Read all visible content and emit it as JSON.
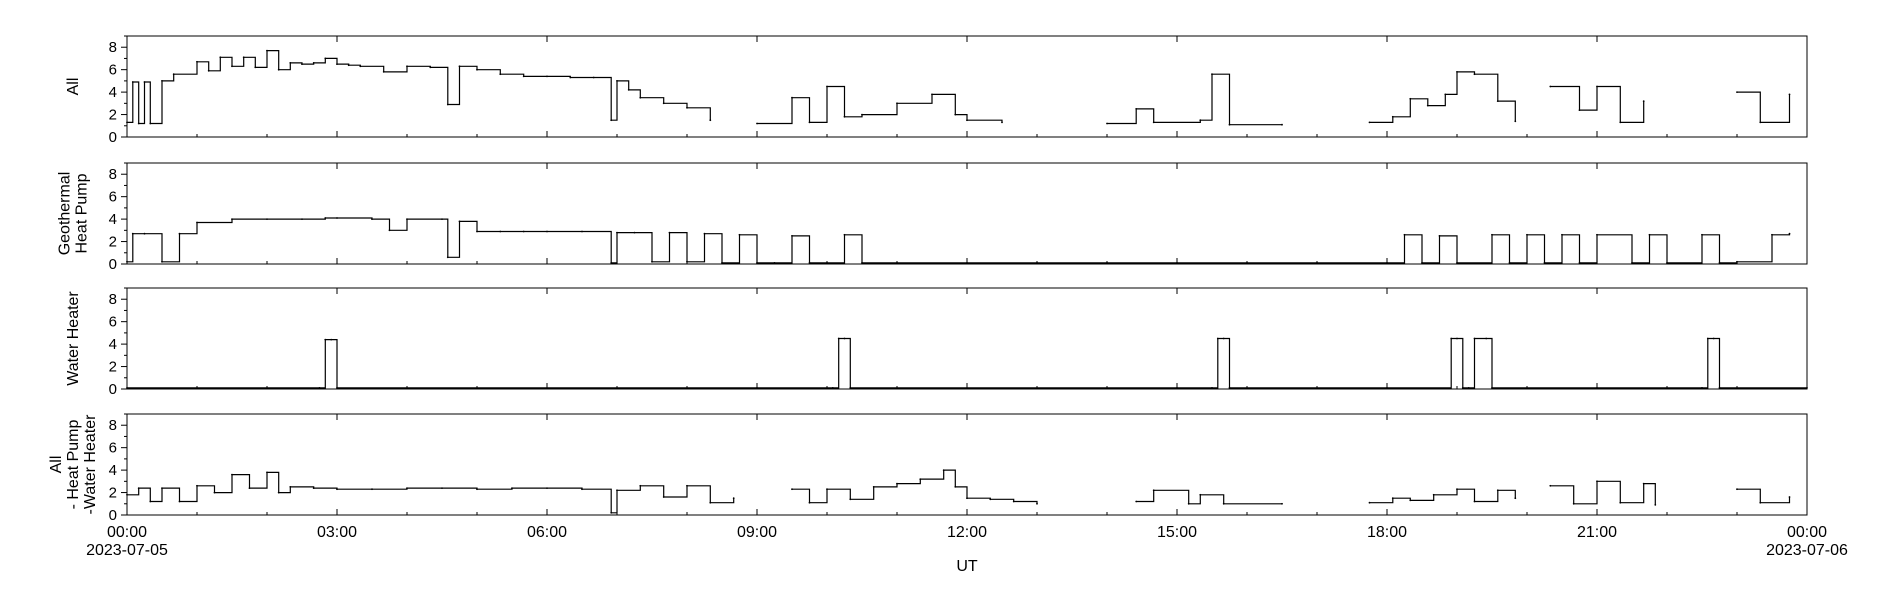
{
  "chart_data": {
    "type": "line",
    "layout": "4 vertically stacked panels sharing one time axis",
    "title": "",
    "grid": false,
    "xlabel": "UT",
    "x_range": [
      "2023-07-05T00:00",
      "2023-07-06T00:00"
    ],
    "x_tick_labels": [
      "00:00",
      "03:00",
      "06:00",
      "09:00",
      "12:00",
      "15:00",
      "18:00",
      "21:00",
      "00:00"
    ],
    "x_tick_hours": [
      0,
      3,
      6,
      9,
      12,
      15,
      18,
      21,
      24
    ],
    "x_date_labels": [
      {
        "hour": 0,
        "text": "2023-07-05"
      },
      {
        "hour": 24,
        "text": "2023-07-06"
      }
    ],
    "ylim": [
      0,
      9
    ],
    "y_ticks": [
      0,
      2,
      4,
      6,
      8
    ],
    "line_color": "#000000",
    "panels": [
      {
        "ylabel": [
          "All"
        ],
        "x": [
          "00:00",
          "00:05",
          "00:10",
          "00:15",
          "00:20",
          "00:30",
          "00:40",
          "01:00",
          "01:10",
          "01:20",
          "01:30",
          "01:40",
          "01:50",
          "02:00",
          "02:10",
          "02:20",
          "02:30",
          "02:40",
          "02:50",
          "03:00",
          "03:10",
          "03:20",
          "03:40",
          "04:00",
          "04:20",
          "04:35",
          "04:45",
          "05:00",
          "05:20",
          "05:40",
          "06:00",
          "06:20",
          "06:40",
          "06:55",
          "07:00",
          "07:10",
          "07:20",
          "07:40",
          "08:00",
          "08:20",
          "08:40",
          "09:00",
          "09:30",
          "09:45",
          "10:00",
          "10:15",
          "10:30",
          "11:00",
          "11:30",
          "11:50",
          "12:00",
          "12:30",
          "13:00",
          "14:00",
          "14:25",
          "14:40",
          "15:20",
          "15:30",
          "15:45",
          "16:30",
          "17:00",
          "17:45",
          "18:05",
          "18:20",
          "18:35",
          "18:50",
          "19:00",
          "19:15",
          "19:35",
          "19:50",
          "20:00",
          "20:20",
          "20:45",
          "21:00",
          "21:20",
          "21:40",
          "22:00",
          "22:45",
          "23:00",
          "23:20",
          "23:45"
        ],
        "y": [
          1.3,
          4.9,
          1.2,
          4.9,
          1.2,
          5.0,
          5.6,
          6.7,
          5.9,
          7.1,
          6.3,
          7.1,
          6.2,
          7.7,
          6.0,
          6.6,
          6.5,
          6.6,
          7.0,
          6.5,
          6.4,
          6.3,
          5.8,
          6.3,
          6.2,
          2.9,
          6.3,
          6.0,
          5.6,
          5.4,
          5.4,
          5.3,
          5.3,
          1.5,
          5.0,
          4.2,
          3.5,
          3.0,
          2.6,
          1.5,
          null,
          1.2,
          3.5,
          1.3,
          4.5,
          1.8,
          2.0,
          3.0,
          3.8,
          2.0,
          1.5,
          1.3,
          null,
          1.2,
          2.5,
          1.3,
          1.5,
          5.6,
          1.1,
          1.1,
          null,
          1.3,
          1.8,
          3.4,
          2.8,
          3.8,
          5.8,
          5.6,
          3.2,
          1.4,
          null,
          4.5,
          2.4,
          4.5,
          1.3,
          3.2,
          null,
          null,
          4.0,
          1.3,
          3.8
        ]
      },
      {
        "ylabel": [
          "Geothermal",
          "Heat Pump"
        ],
        "x": [
          "00:00",
          "00:05",
          "00:15",
          "00:30",
          "00:45",
          "01:00",
          "01:30",
          "02:00",
          "02:30",
          "02:50",
          "03:00",
          "03:30",
          "03:45",
          "04:00",
          "04:30",
          "04:35",
          "04:45",
          "05:00",
          "05:20",
          "05:40",
          "06:00",
          "06:30",
          "06:55",
          "07:00",
          "07:15",
          "07:30",
          "07:45",
          "08:00",
          "08:15",
          "08:30",
          "08:45",
          "09:00",
          "09:15",
          "09:30",
          "09:45",
          "10:00",
          "10:15",
          "10:30",
          "11:00",
          "12:00",
          "13:00",
          "14:00",
          "15:00",
          "16:00",
          "17:00",
          "18:00",
          "18:15",
          "18:30",
          "18:45",
          "19:00",
          "19:30",
          "19:45",
          "20:00",
          "20:15",
          "20:30",
          "20:45",
          "21:00",
          "21:30",
          "21:45",
          "22:00",
          "22:30",
          "22:45",
          "23:00",
          "23:30",
          "23:45"
        ],
        "y": [
          0.2,
          2.7,
          2.7,
          0.2,
          2.7,
          3.7,
          4.0,
          4.0,
          4.0,
          4.1,
          4.1,
          4.0,
          3.0,
          4.0,
          4.0,
          0.6,
          3.8,
          2.9,
          2.9,
          2.9,
          2.9,
          2.9,
          0.1,
          2.8,
          2.8,
          0.2,
          2.8,
          0.2,
          2.7,
          0.1,
          2.6,
          0.1,
          0.1,
          2.5,
          0.1,
          0.1,
          2.6,
          0.1,
          0.1,
          0.1,
          0.1,
          0.1,
          0.1,
          0.1,
          0.1,
          0.1,
          2.6,
          0.1,
          2.5,
          0.1,
          2.6,
          0.1,
          2.6,
          0.1,
          2.6,
          0.1,
          2.6,
          0.1,
          2.6,
          0.1,
          2.6,
          0.1,
          0.2,
          2.6,
          2.7
        ]
      },
      {
        "ylabel": [
          "Water Heater"
        ],
        "x": [
          "00:00",
          "02:45",
          "02:50",
          "02:55",
          "03:00",
          "09:00",
          "10:05",
          "10:10",
          "10:15",
          "10:20",
          "15:00",
          "15:30",
          "15:35",
          "15:40",
          "15:45",
          "18:00",
          "18:55",
          "19:00",
          "19:05",
          "19:10",
          "19:15",
          "19:25",
          "19:30",
          "21:00",
          "22:30",
          "22:35",
          "22:40",
          "22:45",
          "24:00"
        ],
        "y": [
          0.1,
          0.1,
          4.4,
          4.4,
          0.1,
          0.1,
          0.1,
          4.5,
          4.5,
          0.1,
          0.1,
          0.1,
          4.5,
          4.5,
          0.1,
          0.1,
          4.5,
          4.5,
          0.1,
          0.1,
          4.5,
          4.5,
          0.1,
          0.1,
          0.1,
          4.5,
          4.5,
          0.1,
          0.1
        ]
      },
      {
        "ylabel": [
          "All",
          "- Heat Pump",
          "-Water Heater"
        ],
        "x": [
          "00:00",
          "00:10",
          "00:20",
          "00:30",
          "00:45",
          "01:00",
          "01:15",
          "01:30",
          "01:45",
          "02:00",
          "02:10",
          "02:20",
          "02:40",
          "03:00",
          "03:30",
          "04:00",
          "04:30",
          "05:00",
          "05:30",
          "06:00",
          "06:30",
          "06:55",
          "07:00",
          "07:20",
          "07:40",
          "08:00",
          "08:20",
          "08:40",
          "09:00",
          "09:30",
          "09:45",
          "10:00",
          "10:20",
          "10:40",
          "11:00",
          "11:20",
          "11:40",
          "11:50",
          "12:00",
          "12:20",
          "12:40",
          "13:00",
          "14:00",
          "14:25",
          "14:40",
          "15:10",
          "15:20",
          "15:40",
          "16:30",
          "17:00",
          "17:45",
          "18:05",
          "18:20",
          "18:40",
          "19:00",
          "19:15",
          "19:35",
          "19:50",
          "20:00",
          "20:20",
          "20:40",
          "21:00",
          "21:20",
          "21:40",
          "21:50",
          "22:00",
          "22:45",
          "23:00",
          "23:20",
          "23:45"
        ],
        "y": [
          1.8,
          2.4,
          1.2,
          2.4,
          1.2,
          2.6,
          2.0,
          3.6,
          2.4,
          3.8,
          2.0,
          2.5,
          2.4,
          2.3,
          2.3,
          2.4,
          2.4,
          2.3,
          2.4,
          2.4,
          2.3,
          0.2,
          2.2,
          2.6,
          1.6,
          2.6,
          1.1,
          1.5,
          null,
          2.3,
          1.1,
          2.3,
          1.4,
          2.5,
          2.8,
          3.2,
          4.0,
          2.5,
          1.5,
          1.4,
          1.2,
          1.0,
          null,
          1.2,
          2.2,
          1.0,
          1.8,
          1.0,
          1.0,
          null,
          1.1,
          1.5,
          1.3,
          1.8,
          2.3,
          1.2,
          2.2,
          1.5,
          null,
          2.6,
          1.0,
          3.0,
          1.1,
          2.8,
          0.9,
          null,
          null,
          2.3,
          1.1,
          1.6
        ]
      }
    ]
  }
}
